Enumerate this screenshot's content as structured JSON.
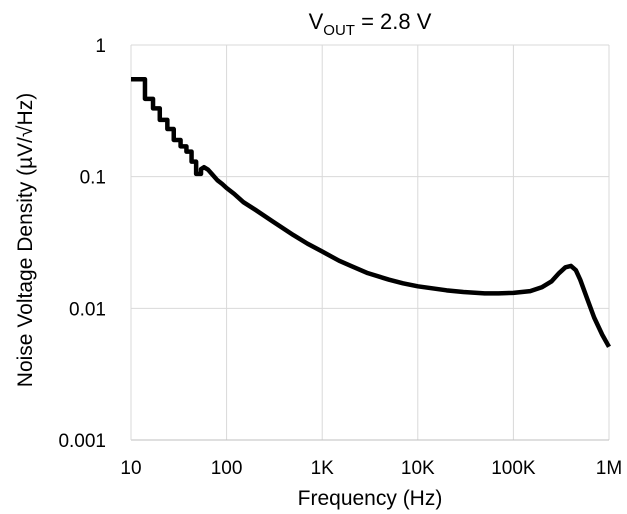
{
  "chart_data": {
    "type": "line",
    "title_main": "V",
    "title_sub": "OUT",
    "title_rest": " = 2.8 V",
    "xlabel": "Frequency (Hz)",
    "ylabel": "Noise Voltage Density (µV/√Hz)",
    "xscale": "log",
    "yscale": "log",
    "xlim": [
      10,
      1000000
    ],
    "ylim": [
      0.001,
      1
    ],
    "grid": true,
    "xticks": [
      {
        "value": 10,
        "label": "10"
      },
      {
        "value": 100,
        "label": "100"
      },
      {
        "value": 1000,
        "label": "1K"
      },
      {
        "value": 10000,
        "label": "10K"
      },
      {
        "value": 100000,
        "label": "100K"
      },
      {
        "value": 1000000,
        "label": "1M"
      }
    ],
    "yticks": [
      {
        "value": 1,
        "label": "1"
      },
      {
        "value": 0.1,
        "label": "0.1"
      },
      {
        "value": 0.01,
        "label": "0.01"
      },
      {
        "value": 0.001,
        "label": "0.001"
      }
    ],
    "series": [
      {
        "color": "#000000",
        "points": [
          [
            10,
            0.55
          ],
          [
            14,
            0.55
          ],
          [
            14,
            0.39
          ],
          [
            17,
            0.39
          ],
          [
            17,
            0.33
          ],
          [
            20,
            0.33
          ],
          [
            20,
            0.27
          ],
          [
            24,
            0.27
          ],
          [
            24,
            0.23
          ],
          [
            28,
            0.23
          ],
          [
            28,
            0.19
          ],
          [
            33,
            0.19
          ],
          [
            33,
            0.17
          ],
          [
            38,
            0.17
          ],
          [
            38,
            0.155
          ],
          [
            43,
            0.155
          ],
          [
            43,
            0.13
          ],
          [
            48,
            0.13
          ],
          [
            48,
            0.105
          ],
          [
            54,
            0.105
          ],
          [
            54,
            0.114
          ],
          [
            58,
            0.118
          ],
          [
            64,
            0.113
          ],
          [
            70,
            0.105
          ],
          [
            80,
            0.094
          ],
          [
            90,
            0.088
          ],
          [
            100,
            0.082
          ],
          [
            120,
            0.074
          ],
          [
            150,
            0.064
          ],
          [
            200,
            0.056
          ],
          [
            300,
            0.046
          ],
          [
            500,
            0.036
          ],
          [
            700,
            0.031
          ],
          [
            1000,
            0.027
          ],
          [
            1500,
            0.023
          ],
          [
            2000,
            0.021
          ],
          [
            3000,
            0.0185
          ],
          [
            5000,
            0.0165
          ],
          [
            7000,
            0.0155
          ],
          [
            10000,
            0.0147
          ],
          [
            20000,
            0.0137
          ],
          [
            30000,
            0.0133
          ],
          [
            50000,
            0.013
          ],
          [
            70000,
            0.013
          ],
          [
            100000,
            0.0131
          ],
          [
            150000,
            0.0135
          ],
          [
            200000,
            0.0145
          ],
          [
            250000,
            0.016
          ],
          [
            300000,
            0.0185
          ],
          [
            350000,
            0.0205
          ],
          [
            400000,
            0.021
          ],
          [
            450000,
            0.0195
          ],
          [
            500000,
            0.0165
          ],
          [
            600000,
            0.0115
          ],
          [
            700000,
            0.0085
          ],
          [
            850000,
            0.0063
          ],
          [
            1000000,
            0.0051
          ]
        ]
      }
    ]
  }
}
